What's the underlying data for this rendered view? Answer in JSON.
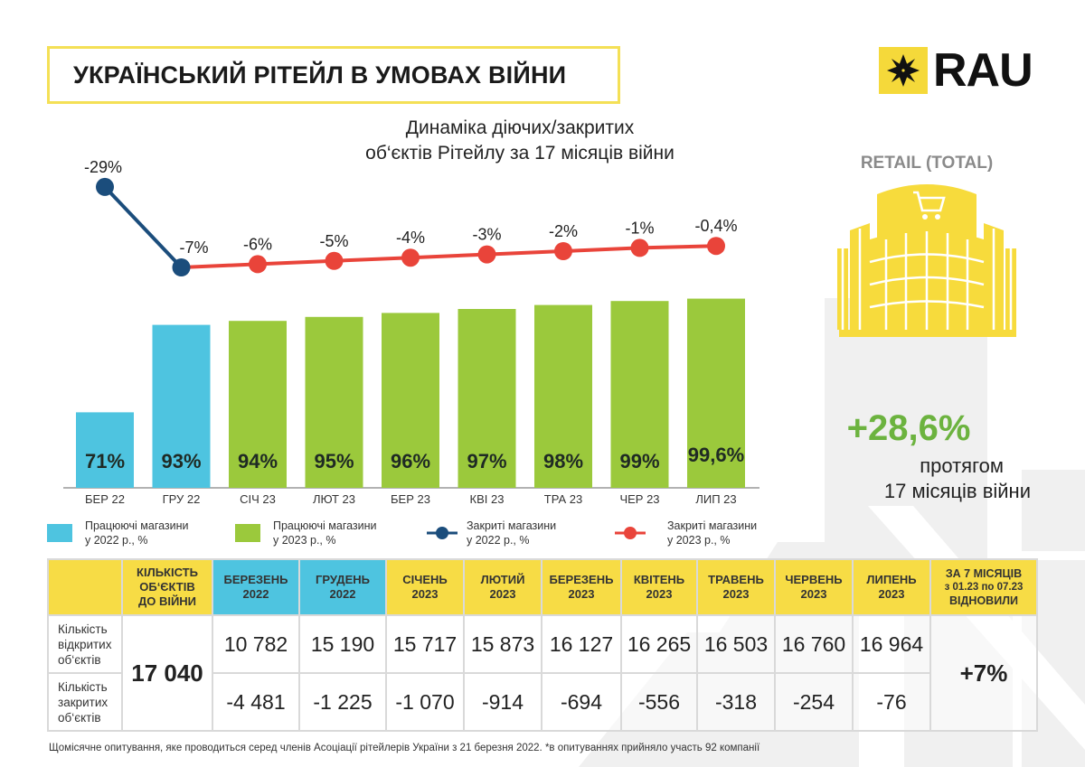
{
  "header": {
    "title": "УКРАЇНСЬКИЙ РІТЕЙЛ В УМОВАХ ВІЙНИ",
    "logo_text": "RAU"
  },
  "colors": {
    "yellow": "#f5d93a",
    "blue_2022": "#4ec4e0",
    "green_2023": "#9bc93c",
    "line_2022": "#1b4d7c",
    "line_2023": "#e9443a",
    "highlight_green": "#6cb33f"
  },
  "chart_data": {
    "type": "bar",
    "title": "Динаміка діючих/закритих об‘єктів Рітейлу за 17 місяців війни",
    "title_lines": [
      "Динаміка діючих/закритих",
      "об‘єктів Рітейлу за 17 місяців війни"
    ],
    "categories": [
      "БЕР 22",
      "ГРУ 22",
      "СІЧ 23",
      "ЛЮТ 23",
      "БЕР 23",
      "КВІ 23",
      "ТРА 23",
      "ЧЕР 23",
      "ЛИП 23"
    ],
    "series": [
      {
        "name": "Працюючі магазини у 2022 р., %",
        "kind": "bar",
        "values": [
          71,
          93,
          null,
          null,
          null,
          null,
          null,
          null,
          null
        ],
        "labels": [
          "71%",
          "93%",
          null,
          null,
          null,
          null,
          null,
          null,
          null
        ]
      },
      {
        "name": "Працюючі магазини у 2023 р., %",
        "kind": "bar",
        "values": [
          null,
          null,
          94,
          95,
          96,
          97,
          98,
          99,
          99.6
        ],
        "labels": [
          null,
          null,
          "94%",
          "95%",
          "96%",
          "97%",
          "98%",
          "99%",
          "99,6%"
        ]
      },
      {
        "name": "Закриті магазини у 2022 р., %",
        "kind": "line",
        "values": [
          -29,
          -7,
          null,
          null,
          null,
          null,
          null,
          null,
          null
        ],
        "labels": [
          "-29%",
          "-7%",
          null,
          null,
          null,
          null,
          null,
          null,
          null
        ]
      },
      {
        "name": "Закриті магазини у 2023 р., %",
        "kind": "line",
        "values": [
          null,
          -7,
          -6,
          -5,
          -4,
          -3,
          -2,
          -1,
          -0.4
        ],
        "labels": [
          null,
          null,
          "-6%",
          "-5%",
          "-4%",
          "-3%",
          "-2%",
          "-1%",
          "-0,4%"
        ]
      }
    ],
    "xlabel": "",
    "ylabel": "",
    "grid": false,
    "legend_position": "bottom"
  },
  "legend": [
    {
      "line1": "Працюючі магазини",
      "line2": "у 2022 р., %",
      "icon": "square-blue"
    },
    {
      "line1": "Працюючі магазини",
      "line2": "у 2023 р., %",
      "icon": "square-green"
    },
    {
      "line1": "Закриті магазини",
      "line2": "у 2022 р., %",
      "icon": "line-dot-navy"
    },
    {
      "line1": "Закриті магазини",
      "line2": "у 2023 р., %",
      "icon": "line-dot-red"
    }
  ],
  "side_panel": {
    "category": "RETAIL (TOTAL)",
    "icon": "shopping-mall-icon",
    "growth": "+28,6%",
    "growth_caption_1": "протягом",
    "growth_caption_2": "17 місяців війни"
  },
  "table": {
    "headers": [
      {
        "l1": "",
        "l2": "",
        "l3": ""
      },
      {
        "l1": "КІЛЬКІСТЬ",
        "l2": "ОБ‘ЄКТІВ",
        "l3": "ДО ВІЙНИ"
      },
      {
        "l1": "БЕРЕЗЕНЬ",
        "l2": "2022",
        "l3": ""
      },
      {
        "l1": "ГРУДЕНЬ",
        "l2": "2022",
        "l3": ""
      },
      {
        "l1": "СІЧЕНЬ",
        "l2": "2023",
        "l3": ""
      },
      {
        "l1": "ЛЮТИЙ",
        "l2": "2023",
        "l3": ""
      },
      {
        "l1": "БЕРЕЗЕНЬ",
        "l2": "2023",
        "l3": ""
      },
      {
        "l1": "КВІТЕНЬ",
        "l2": "2023",
        "l3": ""
      },
      {
        "l1": "ТРАВЕНЬ",
        "l2": "2023",
        "l3": ""
      },
      {
        "l1": "ЧЕРВЕНЬ",
        "l2": "2023",
        "l3": ""
      },
      {
        "l1": "ЛИПЕНЬ",
        "l2": "2023",
        "l3": ""
      },
      {
        "l1": "ЗА 7 МІСЯЦІВ",
        "l2": "з 01.23 по 07.23",
        "l3": "ВІДНОВИЛИ"
      }
    ],
    "row_open_label": [
      "Кількість",
      "відкритих",
      "об‘єктів"
    ],
    "row_closed_label": [
      "Кількість",
      "закритих",
      "об‘єктів"
    ],
    "prewar_total": "17 040",
    "open": [
      "10 782",
      "15 190",
      "15 717",
      "15 873",
      "16 127",
      "16 265",
      "16 503",
      "16 760",
      "16 964"
    ],
    "closed": [
      "-4 481",
      "-1 225",
      "-1 070",
      "-914",
      "-694",
      "-556",
      "-318",
      "-254",
      "-76"
    ],
    "recovered": "+7%"
  },
  "footnote": "Щомісячне опитування, яке проводиться серед членів Асоціації рітейлерів України з 21 березня 2022.  *в опитуваннях прийняло участь 92 компанії"
}
